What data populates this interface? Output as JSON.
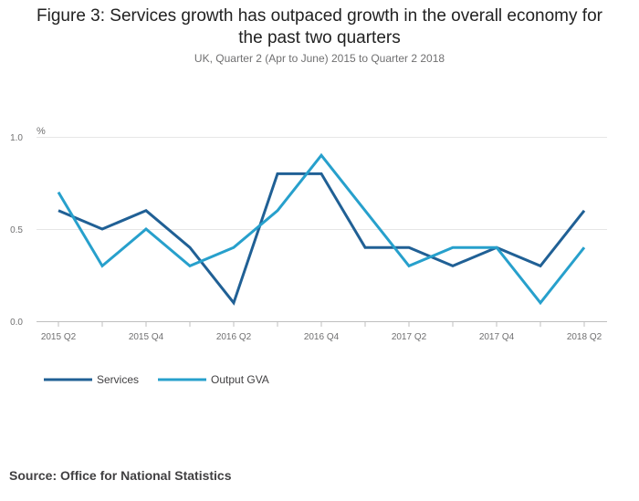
{
  "chart_data": {
    "type": "line",
    "title_line1": "Figure 3: Services growth has outpaced growth in the overall economy for",
    "title_line2": "the past two quarters",
    "subtitle": "UK, Quarter 2 (Apr to June) 2015 to Quarter 2 2018",
    "ylabel": "%",
    "ylim": [
      0,
      1.0
    ],
    "yticks": [
      "0.0",
      "0.5",
      "1.0"
    ],
    "x": [
      "2015 Q2",
      "2015 Q3",
      "2015 Q4",
      "2016 Q1",
      "2016 Q2",
      "2016 Q3",
      "2016 Q4",
      "2017 Q1",
      "2017 Q2",
      "2017 Q3",
      "2017 Q4",
      "2018 Q1",
      "2018 Q2"
    ],
    "xtick_labels": [
      "2015 Q2",
      "2015 Q4",
      "2016 Q2",
      "2016 Q4",
      "2017 Q2",
      "2017 Q4",
      "2018 Q2"
    ],
    "series": [
      {
        "name": "Services",
        "color": "#206095",
        "values": [
          0.6,
          0.5,
          0.6,
          0.4,
          0.1,
          0.8,
          0.8,
          0.4,
          0.4,
          0.3,
          0.4,
          0.3,
          0.6
        ]
      },
      {
        "name": "Output GVA",
        "color": "#27a0cc",
        "values": [
          0.7,
          0.3,
          0.5,
          0.3,
          0.4,
          0.6,
          0.9,
          0.6,
          0.3,
          0.4,
          0.4,
          0.1,
          0.4
        ]
      }
    ]
  },
  "source": "Source: Office for National Statistics"
}
